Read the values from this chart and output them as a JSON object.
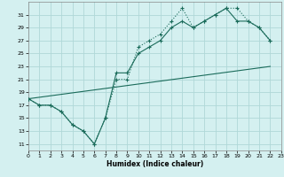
{
  "xlabel": "Humidex (Indice chaleur)",
  "bg_color": "#d4f0f0",
  "grid_color": "#b0d8d8",
  "line_color": "#1a6b5a",
  "xlim": [
    0,
    23
  ],
  "ylim": [
    10,
    33
  ],
  "yticks": [
    11,
    13,
    15,
    17,
    19,
    21,
    23,
    25,
    27,
    29,
    31
  ],
  "xticks": [
    0,
    1,
    2,
    3,
    4,
    5,
    6,
    7,
    8,
    9,
    10,
    11,
    12,
    13,
    14,
    15,
    16,
    17,
    18,
    19,
    20,
    21,
    22,
    23
  ],
  "line1_x": [
    0,
    1,
    2,
    3,
    4,
    5,
    6,
    7,
    8,
    9,
    10,
    11,
    12,
    13,
    14,
    15,
    16,
    17,
    18,
    19,
    20,
    21,
    22
  ],
  "line1_y": [
    18,
    17,
    17,
    16,
    14,
    13,
    11,
    15,
    21,
    21,
    26,
    27,
    28,
    30,
    32,
    29,
    30,
    31,
    32,
    32,
    30,
    29,
    27
  ],
  "line2_x": [
    0,
    1,
    2,
    3,
    4,
    5,
    6,
    7,
    8,
    9,
    10,
    11,
    12,
    13,
    14,
    15,
    16,
    17,
    18,
    19,
    20,
    21,
    22
  ],
  "line2_y": [
    18,
    17,
    17,
    16,
    14,
    13,
    11,
    15,
    22,
    22,
    25,
    26,
    27,
    29,
    30,
    29,
    30,
    31,
    32,
    30,
    30,
    29,
    27
  ],
  "line3_x": [
    0,
    22
  ],
  "line3_y": [
    18,
    23
  ]
}
